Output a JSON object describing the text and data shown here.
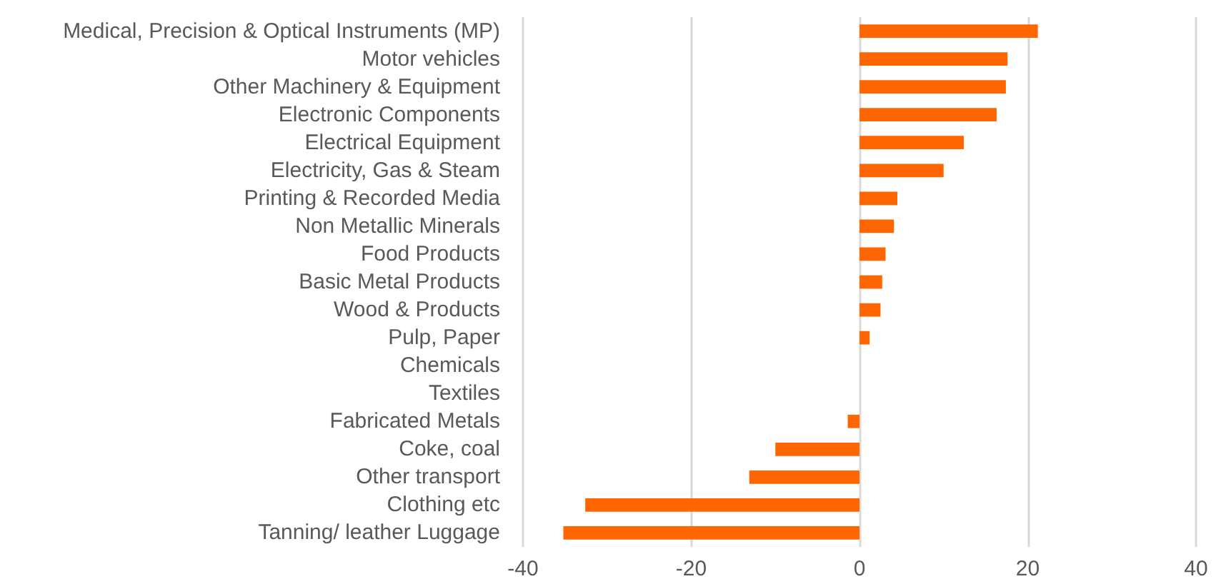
{
  "chart_data": {
    "type": "bar",
    "orientation": "horizontal",
    "categories": [
      "Medical, Precision & Optical Instruments (MP)",
      "Motor vehicles",
      "Other Machinery & Equipment",
      "Electronic Components",
      "Electrical Equipment",
      "Electricity, Gas & Steam",
      "Printing & Recorded Media",
      "Non Metallic Minerals",
      "Food Products",
      "Basic Metal Products",
      "Wood & Products",
      "Pulp, Paper",
      "Chemicals",
      "Textiles",
      "Fabricated Metals",
      "Coke, coal",
      "Other transport",
      "Clothing etc",
      "Tanning/ leather Luggage"
    ],
    "values": [
      21.2,
      17.6,
      17.4,
      16.3,
      12.4,
      10.0,
      4.5,
      4.1,
      3.1,
      2.7,
      2.5,
      1.2,
      0,
      0,
      -1.4,
      -10.0,
      -13.1,
      -32.6,
      -35.2
    ],
    "color": "#ff6600",
    "xlim": [
      -40,
      40
    ],
    "xticks": [
      -40,
      -20,
      0,
      20,
      40
    ],
    "grid": "x"
  }
}
